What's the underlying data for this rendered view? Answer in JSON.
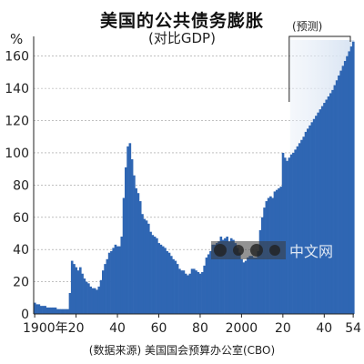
{
  "header": {
    "title": "美国的公共债务膨胀",
    "subtitle": "(对比GDP)",
    "unit": "%",
    "forecast_label": "(预测)"
  },
  "footer": {
    "source": "(数据来源)  美国国会预算办公室(CBO)"
  },
  "watermark": {
    "text": "中文网"
  },
  "colors": {
    "bar": "#2f66b3",
    "forecast_shade": "#d7e3f2",
    "grid": "#9a9a9a"
  },
  "chart_data": {
    "type": "bar",
    "title": "美国的公共债务膨胀",
    "subtitle": "(对比GDP)",
    "ylabel": "%",
    "xlabel": "",
    "ylim": [
      0,
      170
    ],
    "xlim": [
      1900,
      2054
    ],
    "yticks": [
      0,
      20,
      40,
      60,
      80,
      100,
      120,
      140,
      160
    ],
    "xtick_values": [
      1900,
      1920,
      1940,
      1960,
      1980,
      2000,
      2020,
      2040,
      2054
    ],
    "xtick_labels": [
      "1900年",
      "20",
      "40",
      "60",
      "80",
      "2000",
      "20",
      "40",
      "54"
    ],
    "forecast_start": 2024,
    "forecast_end": 2054,
    "x": [
      1900,
      1901,
      1902,
      1903,
      1904,
      1905,
      1906,
      1907,
      1908,
      1909,
      1910,
      1911,
      1912,
      1913,
      1914,
      1915,
      1916,
      1917,
      1918,
      1919,
      1920,
      1921,
      1922,
      1923,
      1924,
      1925,
      1926,
      1927,
      1928,
      1929,
      1930,
      1931,
      1932,
      1933,
      1934,
      1935,
      1936,
      1937,
      1938,
      1939,
      1940,
      1941,
      1942,
      1943,
      1944,
      1945,
      1946,
      1947,
      1948,
      1949,
      1950,
      1951,
      1952,
      1953,
      1954,
      1955,
      1956,
      1957,
      1958,
      1959,
      1960,
      1961,
      1962,
      1963,
      1964,
      1965,
      1966,
      1967,
      1968,
      1969,
      1970,
      1971,
      1972,
      1973,
      1974,
      1975,
      1976,
      1977,
      1978,
      1979,
      1980,
      1981,
      1982,
      1983,
      1984,
      1985,
      1986,
      1987,
      1988,
      1989,
      1990,
      1991,
      1992,
      1993,
      1994,
      1995,
      1996,
      1997,
      1998,
      1999,
      2000,
      2001,
      2002,
      2003,
      2004,
      2005,
      2006,
      2007,
      2008,
      2009,
      2010,
      2011,
      2012,
      2013,
      2014,
      2015,
      2016,
      2017,
      2018,
      2019,
      2020,
      2021,
      2022,
      2023,
      2024,
      2025,
      2026,
      2027,
      2028,
      2029,
      2030,
      2031,
      2032,
      2033,
      2034,
      2035,
      2036,
      2037,
      2038,
      2039,
      2040,
      2041,
      2042,
      2043,
      2044,
      2045,
      2046,
      2047,
      2048,
      2049,
      2050,
      2051,
      2052,
      2053,
      2054
    ],
    "values": [
      7,
      6,
      6,
      5,
      5,
      5,
      4,
      4,
      4,
      4,
      4,
      3,
      3,
      3,
      3,
      3,
      3,
      13,
      33,
      31,
      29,
      27,
      29,
      25,
      22,
      20,
      19,
      17,
      16,
      16,
      15,
      17,
      21,
      27,
      31,
      34,
      38,
      39,
      41,
      43,
      42,
      42,
      48,
      72,
      91,
      104,
      106,
      96,
      86,
      78,
      75,
      70,
      62,
      59,
      58,
      56,
      51,
      49,
      48,
      47,
      44,
      43,
      42,
      41,
      39,
      38,
      36,
      34,
      33,
      31,
      28,
      27,
      27,
      25,
      24,
      25,
      28,
      28,
      27,
      26,
      25,
      26,
      30,
      35,
      37,
      39,
      43,
      43,
      44,
      45,
      48,
      46,
      47,
      48,
      45,
      47,
      46,
      44,
      41,
      38,
      34,
      32,
      33,
      35,
      36,
      36,
      35,
      35,
      39,
      52,
      60,
      66,
      70,
      72,
      73,
      72,
      76,
      77,
      78,
      79,
      100,
      97,
      95,
      97,
      99,
      100,
      102,
      104,
      106,
      108,
      110,
      113,
      115,
      117,
      119,
      121,
      123,
      125,
      127,
      129,
      131,
      133,
      135,
      137,
      139,
      142,
      145,
      148,
      151,
      154,
      157,
      160,
      163,
      166,
      169
    ]
  }
}
